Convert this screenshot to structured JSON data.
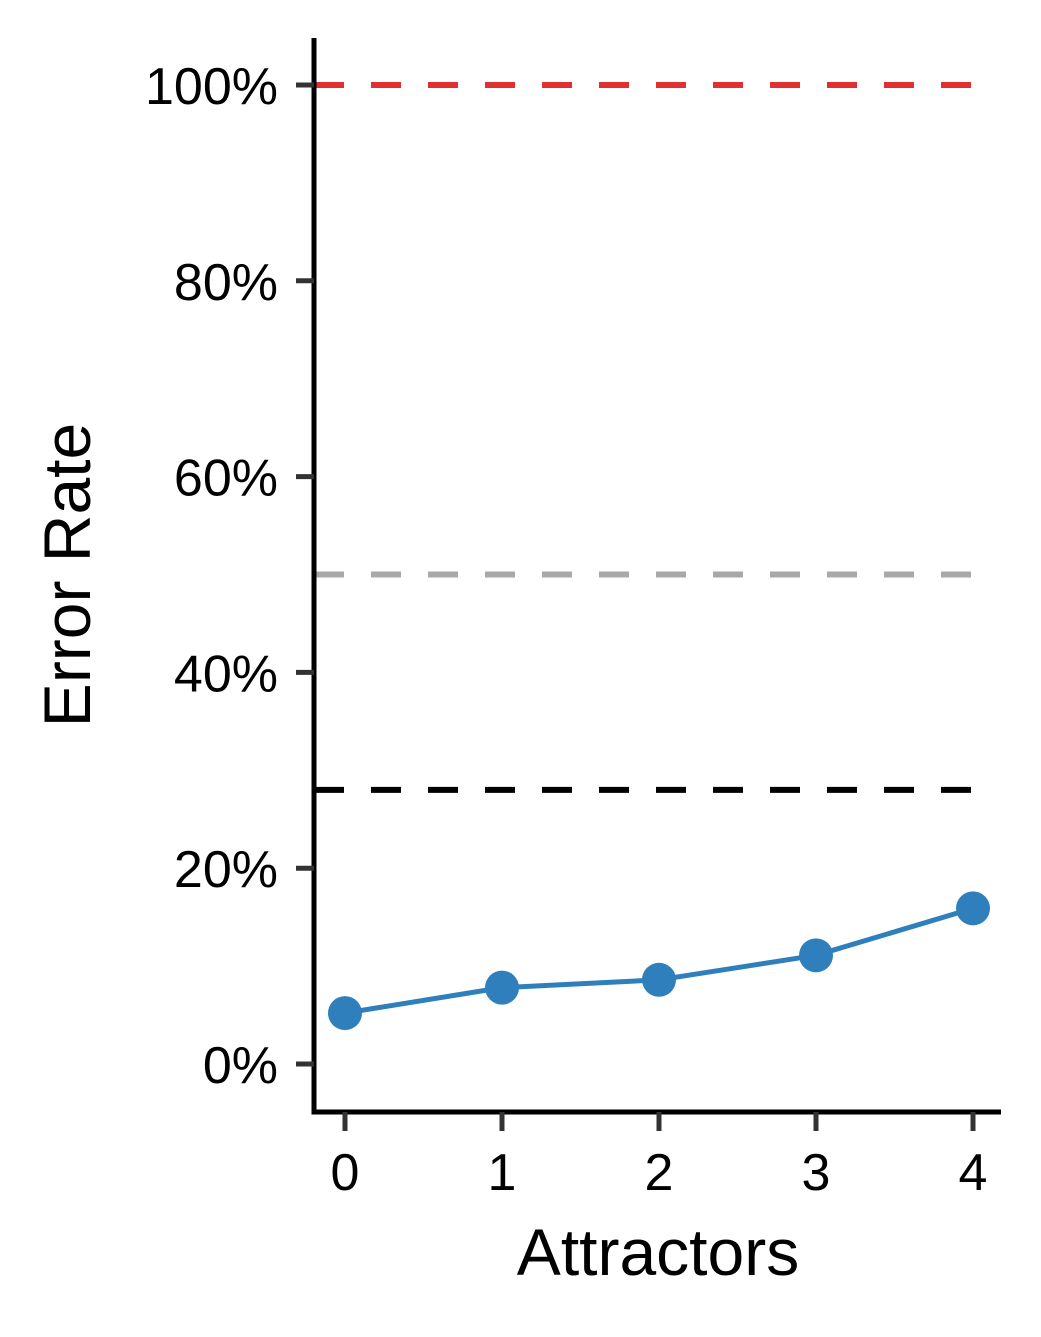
{
  "chart_data": {
    "type": "line",
    "title": "",
    "xlabel": "Attractors",
    "ylabel": "Error Rate",
    "x": [
      0,
      1,
      2,
      3,
      4
    ],
    "x_ticks": [
      0,
      1,
      2,
      3,
      4
    ],
    "x_tick_labels": [
      "0",
      "1",
      "2",
      "3",
      "4"
    ],
    "xlim": [
      -0.2,
      4.2
    ],
    "ylim": [
      -0.05,
      1.05
    ],
    "y_ticks": [
      0,
      0.2,
      0.4,
      0.6,
      0.8,
      1.0
    ],
    "y_tick_labels": [
      "0%",
      "20%",
      "40%",
      "60%",
      "80%",
      "100%"
    ],
    "y_format": "percent",
    "grid": false,
    "legend": "none",
    "series": [
      {
        "values": [
          0.052,
          0.078,
          0.086,
          0.111,
          0.159
        ],
        "color": "#2e7fbc",
        "marker": "circle"
      }
    ],
    "reference_lines": [
      {
        "y": 1.0,
        "color": "#e03030",
        "style": "dashed"
      },
      {
        "y": 0.5,
        "color": "#a8a8a8",
        "style": "dashed"
      },
      {
        "y": 0.28,
        "color": "#000000",
        "style": "dashed"
      }
    ]
  }
}
